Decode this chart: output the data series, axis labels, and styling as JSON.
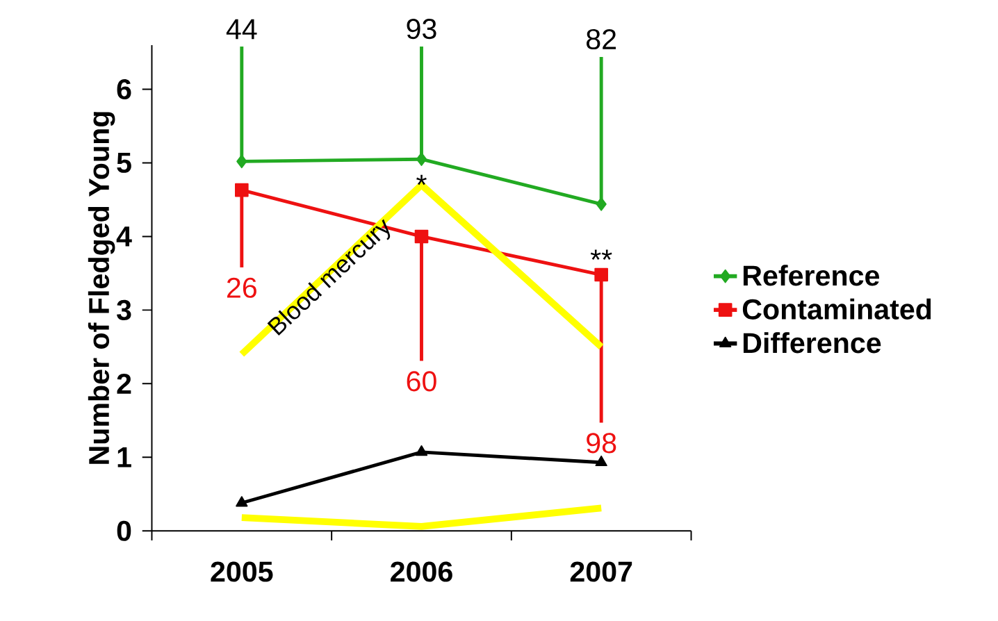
{
  "chart_data": {
    "type": "line",
    "ylabel": "Number of Fledged Young",
    "categories": [
      "2005",
      "2006",
      "2007"
    ],
    "series": [
      {
        "name": "Reference",
        "color": "#22aa22",
        "marker": "diamond",
        "values": [
          5.02,
          5.05,
          4.44
        ],
        "errors": [
          [
            5.02,
            6.58
          ],
          [
            5.05,
            6.58
          ],
          [
            4.44,
            6.44
          ]
        ]
      },
      {
        "name": "Contaminated",
        "color": "#ee1111",
        "marker": "square",
        "values": [
          4.63,
          4.0,
          3.48
        ],
        "errors": [
          [
            3.58,
            4.63
          ],
          [
            2.31,
            4.0
          ],
          [
            1.47,
            3.48
          ]
        ]
      },
      {
        "name": "Difference",
        "color": "#000000",
        "marker": "triangle",
        "values": [
          0.38,
          1.07,
          0.93
        ]
      },
      {
        "name": "Blood mercury",
        "color": "#ffff00",
        "marker": "none",
        "values": [
          2.4,
          4.7,
          2.5
        ]
      },
      {
        "color": "#ffff00",
        "marker": "none",
        "values": [
          0.18,
          0.06,
          0.31
        ]
      }
    ],
    "annotations": [
      {
        "text": "44",
        "x": "2005",
        "y": 6.58
      },
      {
        "text": "93",
        "x": "2006",
        "y": 6.58
      },
      {
        "text": "82",
        "x": "2007",
        "y": 6.44
      },
      {
        "text": "26",
        "x": "2005",
        "y": 3.58
      },
      {
        "text": "60",
        "x": "2006",
        "y": 2.31
      },
      {
        "text": "98",
        "x": "2007",
        "y": 1.47
      },
      "*",
      "**"
    ],
    "ylim": [
      0,
      6.6
    ],
    "yticks": [
      0,
      1,
      2,
      3,
      4,
      5,
      6
    ],
    "legend": "right",
    "grid": false
  }
}
